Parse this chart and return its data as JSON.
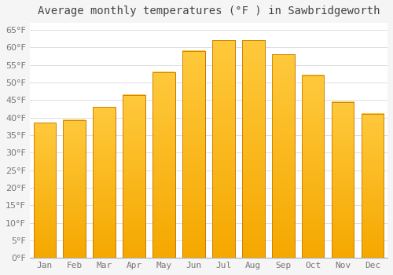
{
  "title": "Average monthly temperatures (°F ) in Sawbridgeworth",
  "months": [
    "Jan",
    "Feb",
    "Mar",
    "Apr",
    "May",
    "Jun",
    "Jul",
    "Aug",
    "Sep",
    "Oct",
    "Nov",
    "Dec"
  ],
  "values": [
    38.5,
    39.2,
    43.0,
    46.5,
    53.0,
    59.0,
    62.0,
    62.0,
    58.0,
    52.0,
    44.5,
    41.0
  ],
  "bar_color_top": "#FFC93C",
  "bar_color_bottom": "#F5A800",
  "bar_edge_color": "#C87800",
  "background_color": "#F5F5F5",
  "plot_bg_color": "#FFFFFF",
  "grid_color": "#DDDDDD",
  "title_fontsize": 10,
  "tick_fontsize": 8,
  "tick_color": "#777777",
  "ylim": [
    0,
    67
  ],
  "ytick_vals": [
    0,
    5,
    10,
    15,
    20,
    25,
    30,
    35,
    40,
    45,
    50,
    55,
    60,
    65
  ]
}
